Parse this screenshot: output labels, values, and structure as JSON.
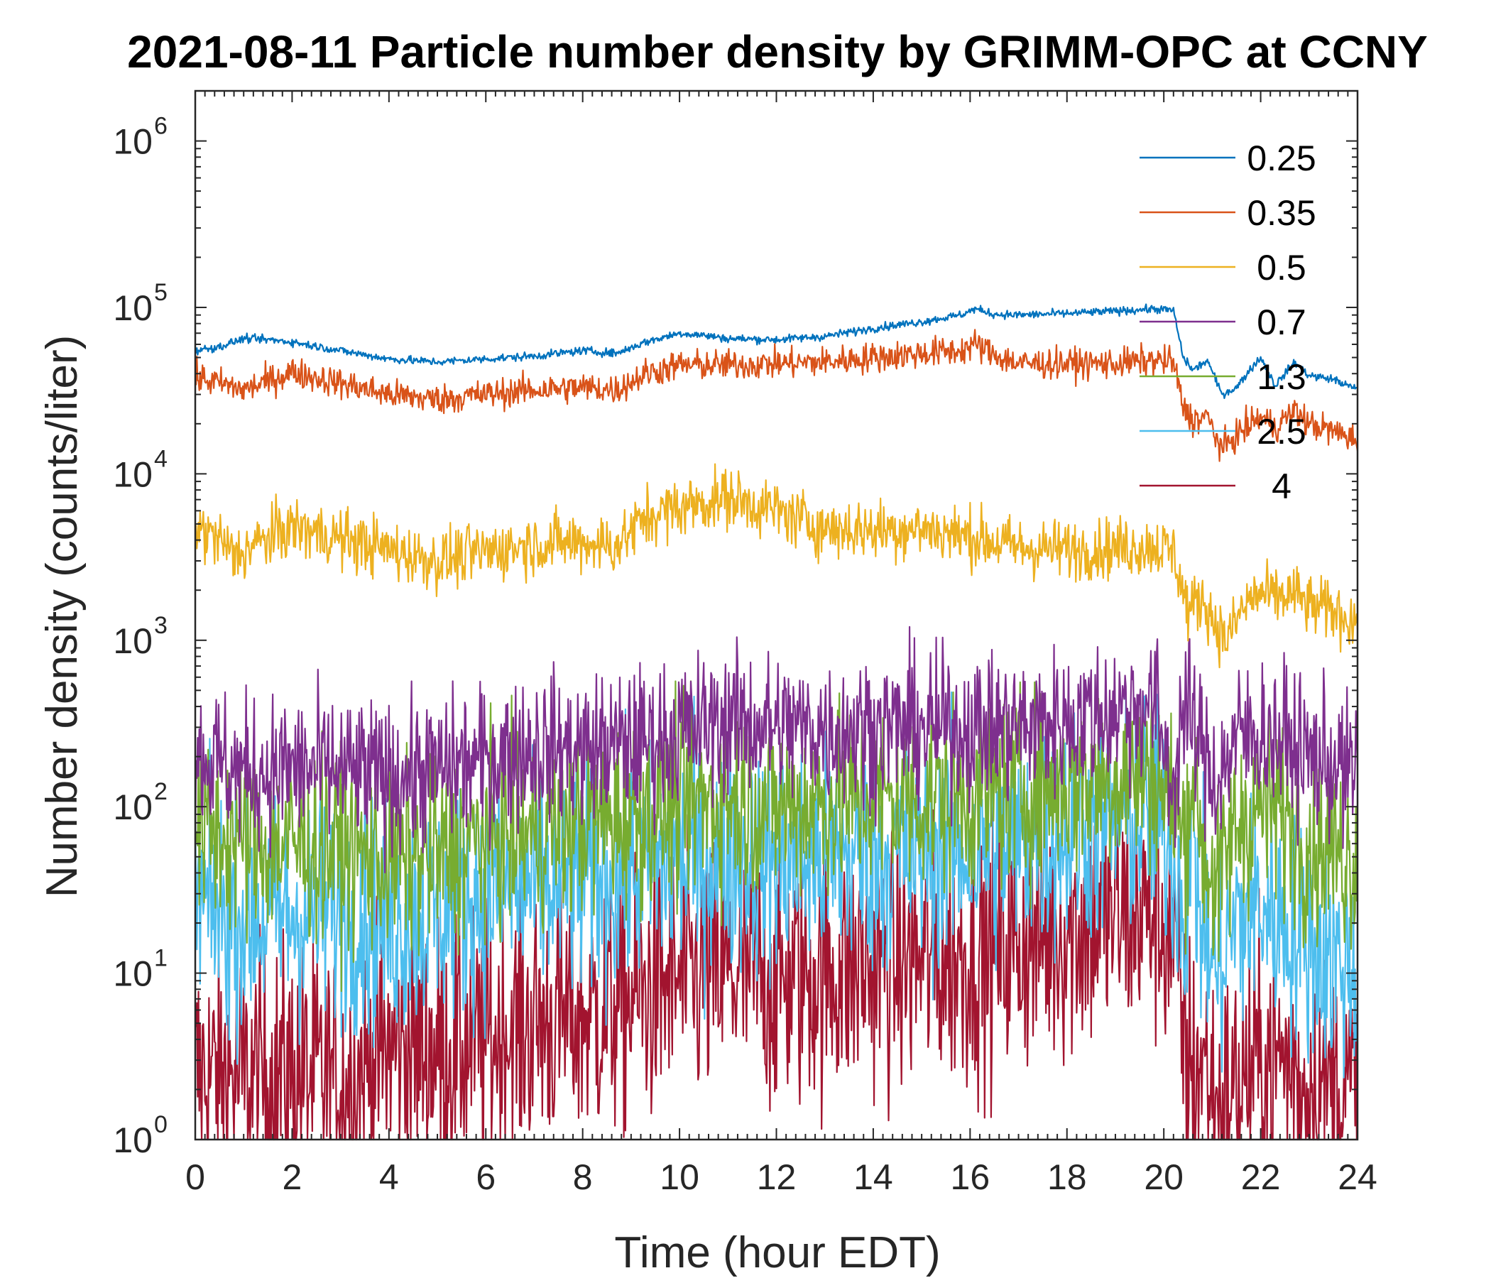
{
  "chart_data": {
    "type": "line",
    "title": "2021-08-11 Particle number density by GRIMM-OPC at CCNY",
    "xlabel": "Time (hour EDT)",
    "ylabel": "Number density (counts/liter)",
    "xlim": [
      0,
      24
    ],
    "ylim": [
      1,
      2000000
    ],
    "yscale": "log",
    "xticks": [
      0,
      2,
      4,
      6,
      8,
      10,
      12,
      14,
      16,
      18,
      20,
      22,
      24
    ],
    "xtick_labels": [
      "0",
      "2",
      "4",
      "6",
      "8",
      "10",
      "12",
      "14",
      "16",
      "18",
      "20",
      "22",
      "24"
    ],
    "yticks": [
      {
        "value": 1,
        "base": "10",
        "exp": "0"
      },
      {
        "value": 10,
        "base": "10",
        "exp": "1"
      },
      {
        "value": 100,
        "base": "10",
        "exp": "2"
      },
      {
        "value": 1000,
        "base": "10",
        "exp": "3"
      },
      {
        "value": 10000,
        "base": "10",
        "exp": "4"
      },
      {
        "value": 100000,
        "base": "10",
        "exp": "5"
      },
      {
        "value": 1000000,
        "base": "10",
        "exp": "6"
      }
    ],
    "legend_position": "top-right",
    "series": [
      {
        "name": "0.25",
        "color": "#0072BD",
        "noise": 0.012,
        "x": [
          0,
          0.5,
          1,
          1.5,
          2,
          3,
          4,
          5,
          6,
          7,
          8,
          8.7,
          9.3,
          10,
          10.5,
          11,
          12,
          13,
          14,
          15,
          15.8,
          16.1,
          16.5,
          17,
          18,
          19,
          19.8,
          20.2,
          20.4,
          20.6,
          20.9,
          21.2,
          21.5,
          21.8,
          22,
          22.3,
          22.7,
          23,
          23.5,
          24
        ],
        "values": [
          55000,
          58000,
          65000,
          64000,
          62000,
          55000,
          49000,
          47000,
          49000,
          51000,
          55000,
          53000,
          62000,
          70000,
          68000,
          65000,
          64000,
          67000,
          75000,
          82000,
          90000,
          98000,
          91000,
          90000,
          92000,
          95000,
          98000,
          96000,
          50000,
          42000,
          48000,
          30000,
          33000,
          43000,
          50000,
          34000,
          47000,
          39000,
          37000,
          32000
        ]
      },
      {
        "name": "0.35",
        "color": "#D95319",
        "noise": 0.045,
        "x": [
          0,
          0.5,
          1,
          1.5,
          2,
          3,
          4,
          5,
          6,
          7,
          8,
          8.7,
          9.3,
          10,
          11,
          12,
          13,
          14,
          15,
          15.8,
          16.1,
          16.5,
          17,
          18,
          19,
          19.8,
          20.2,
          20.4,
          20.6,
          20.9,
          21.2,
          21.5,
          21.8,
          22,
          22.3,
          22.7,
          23,
          23.5,
          24
        ],
        "values": [
          38000,
          35000,
          32000,
          36000,
          41000,
          35000,
          30000,
          28000,
          30000,
          32000,
          33000,
          32000,
          40000,
          45000,
          45000,
          46000,
          47000,
          50000,
          53000,
          55000,
          60000,
          52000,
          46000,
          46000,
          46000,
          48000,
          47000,
          25000,
          21000,
          22000,
          14000,
          17000,
          20000,
          22000,
          19000,
          24000,
          20000,
          18000,
          16000
        ]
      },
      {
        "name": "0.5",
        "color": "#EDB120",
        "noise": 0.09,
        "x": [
          0,
          0.5,
          0.8,
          1.2,
          2,
          3,
          4,
          5,
          6,
          7,
          8,
          8.7,
          9.3,
          10,
          11,
          12,
          13,
          14,
          15,
          16,
          17,
          18,
          19,
          19.8,
          20.2,
          20.5,
          20.8,
          21.1,
          21.3,
          21.6,
          21.9,
          22.3,
          22.7,
          23,
          23.5,
          24
        ],
        "values": [
          4800,
          4000,
          3200,
          3700,
          4800,
          4100,
          3500,
          3000,
          3400,
          3800,
          3900,
          3700,
          5500,
          6300,
          7200,
          6000,
          4700,
          4600,
          4700,
          4200,
          3600,
          3500,
          3600,
          3700,
          3400,
          1500,
          1800,
          1200,
          1000,
          1500,
          1900,
          1800,
          1900,
          1600,
          1500,
          1300
        ]
      },
      {
        "name": "0.7",
        "color": "#7E2F8E",
        "noise": 0.22,
        "x": [
          0,
          1,
          2,
          3,
          4,
          5,
          6,
          7,
          8,
          9,
          10,
          11,
          12,
          13,
          14,
          15,
          16,
          17,
          18,
          19,
          19.8,
          20.2,
          20.4,
          20.6,
          20.8,
          21.1,
          21.5,
          22,
          22.5,
          23,
          23.5,
          24
        ],
        "values": [
          210,
          160,
          170,
          165,
          150,
          165,
          190,
          230,
          220,
          240,
          280,
          330,
          300,
          290,
          300,
          300,
          300,
          300,
          330,
          380,
          420,
          130,
          400,
          300,
          220,
          140,
          260,
          280,
          250,
          200,
          180,
          150
        ]
      },
      {
        "name": "1.3",
        "color": "#77AC30",
        "noise": 0.28,
        "x": [
          0,
          1,
          2,
          3,
          4,
          5,
          6,
          7,
          8,
          9,
          10,
          11,
          12,
          13,
          14,
          15,
          16,
          17,
          18,
          19,
          19.8,
          20.2,
          20.4,
          20.6,
          20.8,
          21.1,
          21.5,
          22,
          22.5,
          23,
          23.5,
          24
        ],
        "values": [
          75,
          60,
          60,
          55,
          48,
          50,
          65,
          70,
          80,
          90,
          100,
          110,
          100,
          105,
          110,
          110,
          115,
          125,
          140,
          150,
          160,
          100,
          60,
          170,
          60,
          30,
          80,
          100,
          90,
          60,
          55,
          50
        ]
      },
      {
        "name": "2.5",
        "color": "#4DBEEE",
        "noise": 0.35,
        "x": [
          0,
          1,
          2,
          3,
          4,
          5,
          6,
          7,
          8,
          9,
          10,
          11,
          12,
          13,
          14,
          15,
          16,
          17,
          18,
          19,
          19.8,
          20.2,
          20.4,
          20.6,
          20.8,
          21.1,
          21.5,
          22,
          22.5,
          23,
          23.5,
          24
        ],
        "values": [
          25,
          22,
          22,
          24,
          20,
          25,
          30,
          32,
          35,
          40,
          45,
          50,
          45,
          48,
          50,
          52,
          55,
          60,
          70,
          80,
          90,
          50,
          25,
          50,
          20,
          10,
          20,
          25,
          20,
          15,
          12,
          10
        ]
      },
      {
        "name": "4",
        "color": "#A2142F",
        "noise": 0.4,
        "x": [
          0,
          1,
          2,
          3,
          3.5,
          4,
          5,
          6,
          7,
          8,
          9,
          10,
          11,
          12,
          13,
          14,
          15,
          16,
          17,
          18,
          19,
          19.8,
          20.2,
          20.4,
          20.6,
          20.8,
          21.1,
          21.5,
          22,
          22.5,
          23,
          23.5,
          24
        ],
        "values": [
          2.5,
          2.3,
          2.5,
          2.2,
          2.5,
          3.5,
          3.5,
          4,
          5,
          5.5,
          7,
          9,
          10,
          9,
          10,
          11,
          12,
          13,
          15,
          18,
          22,
          24,
          16,
          4,
          2.5,
          3,
          1.5,
          2,
          3,
          3,
          2,
          2,
          1.8
        ]
      }
    ]
  }
}
